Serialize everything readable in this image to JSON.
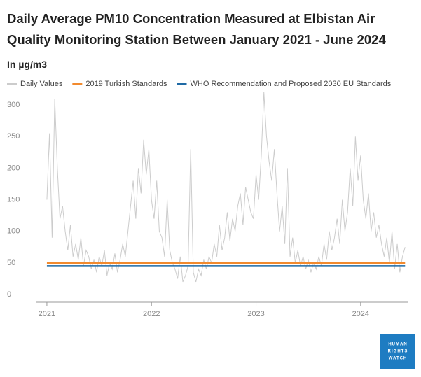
{
  "chart_data": {
    "type": "line",
    "title": "Daily Average PM10 Concentration Measured at Elbistan Air Quality Monitoring Station Between January 2021 - June 2024",
    "subtitle": "In µg/m3",
    "logo_lines": [
      "HUMAN",
      "RIGHTS",
      "WATCH"
    ],
    "xlim": [
      2020.9,
      2024.45
    ],
    "xticks": [
      2021,
      2022,
      2023,
      2024
    ],
    "ylim": [
      0,
      320
    ],
    "yticks": [
      0,
      50,
      100,
      150,
      200,
      250,
      300
    ],
    "series": [
      {
        "name": "Daily Values",
        "color": "#cccccc",
        "x": [
          2021,
          2021.025,
          2021.05,
          2021.075,
          2021.1,
          2021.125,
          2021.15,
          2021.175,
          2021.2,
          2021.225,
          2021.25,
          2021.275,
          2021.3,
          2021.325,
          2021.35,
          2021.375,
          2021.4,
          2021.425,
          2021.45,
          2021.475,
          2021.5,
          2021.525,
          2021.55,
          2021.575,
          2021.6,
          2021.625,
          2021.65,
          2021.675,
          2021.7,
          2021.725,
          2021.75,
          2021.775,
          2021.8,
          2021.825,
          2021.85,
          2021.875,
          2021.9,
          2021.925,
          2021.95,
          2021.975,
          2022,
          2022.025,
          2022.05,
          2022.075,
          2022.1,
          2022.125,
          2022.15,
          2022.175,
          2022.2,
          2022.225,
          2022.25,
          2022.275,
          2022.3,
          2022.325,
          2022.35,
          2022.375,
          2022.4,
          2022.425,
          2022.45,
          2022.475,
          2022.5,
          2022.525,
          2022.55,
          2022.575,
          2022.6,
          2022.625,
          2022.65,
          2022.675,
          2022.7,
          2022.725,
          2022.75,
          2022.775,
          2022.8,
          2022.825,
          2022.85,
          2022.875,
          2022.9,
          2022.925,
          2022.95,
          2022.975,
          2023,
          2023.025,
          2023.05,
          2023.075,
          2023.1,
          2023.125,
          2023.15,
          2023.175,
          2023.2,
          2023.225,
          2023.25,
          2023.275,
          2023.3,
          2023.325,
          2023.35,
          2023.375,
          2023.4,
          2023.425,
          2023.45,
          2023.475,
          2023.5,
          2023.525,
          2023.55,
          2023.575,
          2023.6,
          2023.625,
          2023.65,
          2023.675,
          2023.7,
          2023.725,
          2023.75,
          2023.775,
          2023.8,
          2023.825,
          2023.85,
          2023.875,
          2023.9,
          2023.925,
          2023.95,
          2023.975,
          2024,
          2024.025,
          2024.05,
          2024.075,
          2024.1,
          2024.125,
          2024.15,
          2024.175,
          2024.2,
          2024.225,
          2024.25,
          2024.275,
          2024.3,
          2024.325,
          2024.35,
          2024.375,
          2024.4,
          2024.425
        ],
        "values": [
          150,
          255,
          90,
          310,
          200,
          120,
          140,
          100,
          70,
          110,
          60,
          80,
          55,
          90,
          45,
          70,
          60,
          40,
          55,
          35,
          60,
          45,
          70,
          30,
          50,
          40,
          65,
          35,
          55,
          80,
          60,
          100,
          140,
          180,
          120,
          200,
          160,
          245,
          190,
          230,
          150,
          120,
          180,
          100,
          90,
          60,
          150,
          70,
          50,
          40,
          25,
          60,
          20,
          30,
          45,
          230,
          35,
          20,
          40,
          30,
          55,
          40,
          60,
          50,
          80,
          60,
          110,
          70,
          90,
          130,
          85,
          120,
          100,
          140,
          160,
          110,
          170,
          150,
          130,
          120,
          190,
          150,
          220,
          320,
          250,
          210,
          180,
          230,
          160,
          100,
          140,
          80,
          200,
          60,
          90,
          50,
          70,
          45,
          60,
          40,
          55,
          35,
          50,
          40,
          60,
          45,
          80,
          55,
          100,
          70,
          90,
          120,
          80,
          150,
          100,
          130,
          200,
          140,
          250,
          180,
          220,
          150,
          120,
          160,
          100,
          130,
          90,
          110,
          80,
          60,
          90,
          50,
          100,
          40,
          80,
          35,
          60,
          75
        ]
      },
      {
        "name": "2019 Turkish Standards",
        "color": "#f28a2e",
        "x": [
          2021,
          2024.425
        ],
        "values": [
          50,
          50
        ]
      },
      {
        "name": "WHO Recommendation and Proposed 2030 EU Standards",
        "color": "#1f6aa5",
        "x": [
          2021,
          2024.425
        ],
        "values": [
          45,
          45
        ]
      }
    ]
  }
}
